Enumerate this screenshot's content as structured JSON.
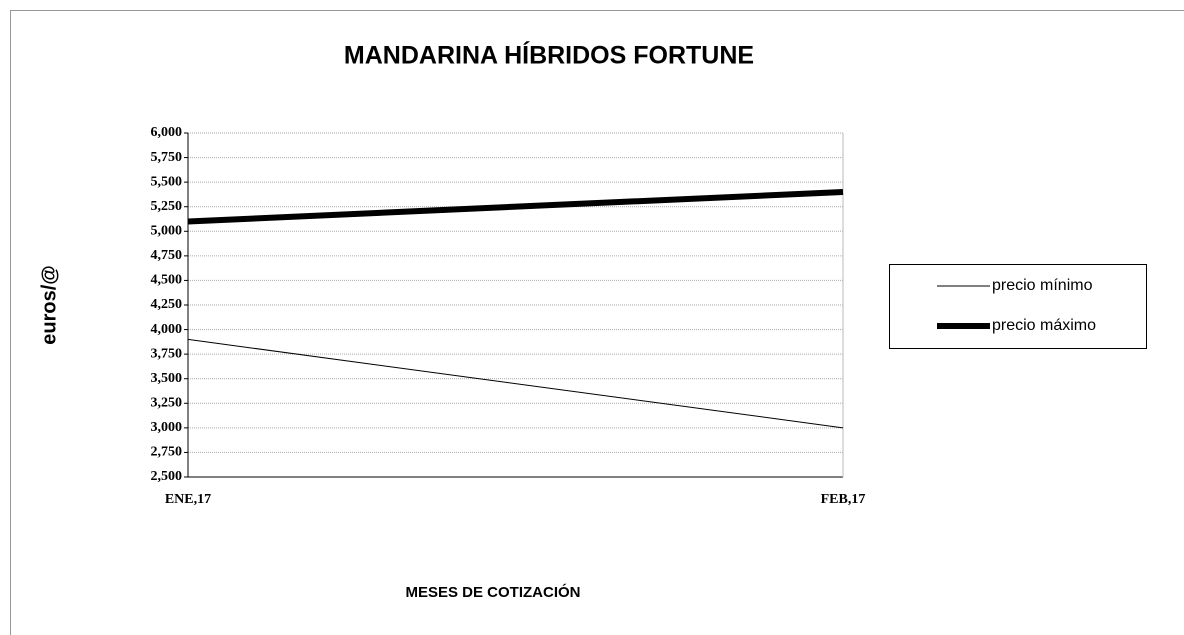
{
  "chart_data": {
    "type": "line",
    "title": "MANDARINA HÍBRIDOS FORTUNE",
    "y_label": "euros/@",
    "x_label": "MESES DE COTIZACIÓN",
    "categories": [
      "ENE,17",
      "FEB,17"
    ],
    "series": [
      {
        "name": "precio mínimo",
        "color": "#000000",
        "width": 1,
        "values": [
          3.9,
          3.0
        ]
      },
      {
        "name": "precio máximo",
        "color": "#000000",
        "width": 6,
        "values": [
          5.1,
          5.4
        ]
      }
    ],
    "ylim": [
      2.5,
      6
    ],
    "yticks": [
      {
        "value": 2.5,
        "label": "2,500"
      },
      {
        "value": 2.75,
        "label": "2,750"
      },
      {
        "value": 3,
        "label": "3,000"
      },
      {
        "value": 3.25,
        "label": "3,250"
      },
      {
        "value": 3.5,
        "label": "3,500"
      },
      {
        "value": 3.75,
        "label": "3,750"
      },
      {
        "value": 4,
        "label": "4,000"
      },
      {
        "value": 4.25,
        "label": "4,250"
      },
      {
        "value": 4.5,
        "label": "4,500"
      },
      {
        "value": 4.75,
        "label": "4,750"
      },
      {
        "value": 5,
        "label": "5,000"
      },
      {
        "value": 5.25,
        "label": "5,250"
      },
      {
        "value": 5.5,
        "label": "5,500"
      },
      {
        "value": 5.75,
        "label": "5,750"
      },
      {
        "value": 6,
        "label": "6,000"
      }
    ],
    "grid": true,
    "legend": "right"
  }
}
